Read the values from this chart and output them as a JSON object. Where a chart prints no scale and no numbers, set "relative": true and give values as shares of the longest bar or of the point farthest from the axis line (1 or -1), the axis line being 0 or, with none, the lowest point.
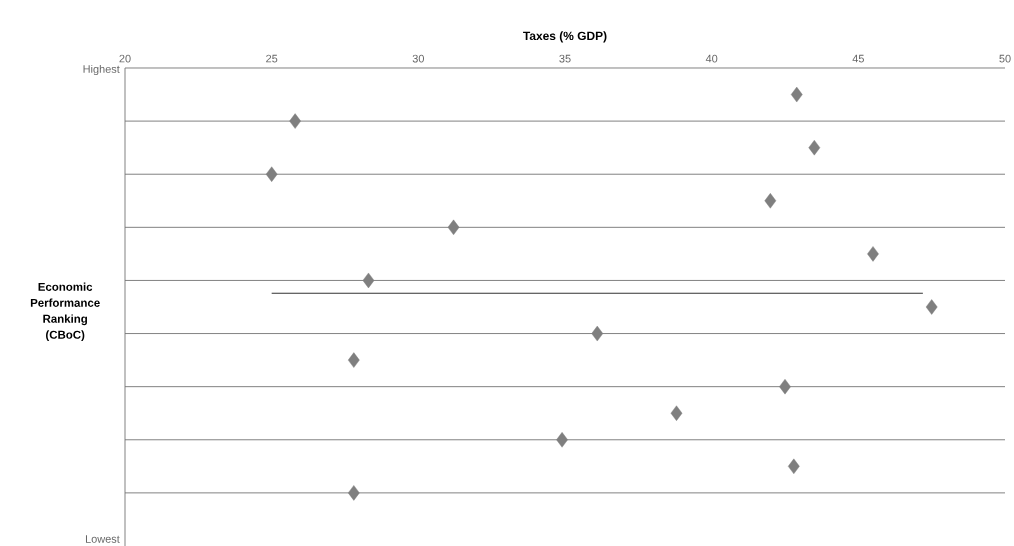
{
  "chart_data": {
    "type": "scatter",
    "relative": true,
    "xlabel": "Taxes (% GDP)",
    "ylabel": "Economic Performance Ranking (CBoC)",
    "annotations": [
      "Highest",
      "Lowest"
    ],
    "xlim": [
      20,
      50
    ],
    "xticks": [
      20,
      25,
      30,
      35,
      40,
      45,
      50
    ],
    "grid": "y",
    "marker": "diamond",
    "series": [
      {
        "color": "#7f7f7f",
        "x": [
          42.9,
          25.8,
          43.5,
          25.0,
          42.0,
          31.2,
          45.5,
          28.3,
          47.5,
          36.1,
          27.8,
          42.5,
          38.8,
          34.9,
          42.8,
          27.8
        ],
        "values": [
          -0.0625,
          -0.125,
          -0.1875,
          -0.25,
          -0.3125,
          -0.375,
          -0.4375,
          -0.5,
          -0.5625,
          -0.625,
          -0.6875,
          -0.75,
          -0.8125,
          -0.875,
          -0.9375,
          -1
        ]
      },
      {
        "type": "line",
        "marker": "none",
        "color": "#333333",
        "x": [
          25.0,
          47.2
        ],
        "values": [
          -0.53,
          -0.53
        ]
      }
    ]
  }
}
